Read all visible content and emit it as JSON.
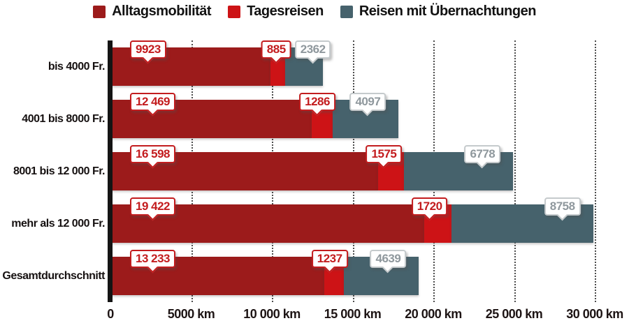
{
  "legend": {
    "items": [
      {
        "label": "Alltagsmobilität",
        "color": "#9c1b1b"
      },
      {
        "label": "Tagesreisen",
        "color": "#cd1316"
      },
      {
        "label": "Reisen mit Übernachtungen",
        "color": "#46626c"
      }
    ]
  },
  "chart_data": {
    "type": "bar",
    "orientation": "horizontal",
    "stacked": true,
    "unit": "km",
    "title": "",
    "categories": [
      "bis 4000 Fr.",
      "4001 bis 8000 Fr.",
      "8001 bis 12 000 Fr.",
      "mehr als 12 000 Fr.",
      "Gesamtdurchschnitt"
    ],
    "series": [
      {
        "name": "Alltagsmobilität",
        "color": "#9c1b1b",
        "bubble_style": "red",
        "values": [
          9923,
          12469,
          16598,
          19422,
          13233
        ],
        "value_labels": [
          "9923",
          "12 469",
          "16 598",
          "19 422",
          "13 233"
        ]
      },
      {
        "name": "Tagesreisen",
        "color": "#cd1316",
        "bubble_style": "red",
        "values": [
          885,
          1286,
          1575,
          1720,
          1237
        ],
        "value_labels": [
          "885",
          "1286",
          "1575",
          "1720",
          "1237"
        ]
      },
      {
        "name": "Reisen mit Übernachtungen",
        "color": "#46626c",
        "bubble_style": "gray",
        "values": [
          2362,
          4097,
          6778,
          8758,
          4639
        ],
        "value_labels": [
          "2362",
          "4097",
          "6778",
          "8758",
          "4639"
        ]
      }
    ],
    "x_axis": {
      "min": 0,
      "max": 30000,
      "ticks": [
        {
          "value": 0,
          "label": "0"
        },
        {
          "value": 5000,
          "label": "5000 km"
        },
        {
          "value": 10000,
          "label": "10 000 km"
        },
        {
          "value": 15000,
          "label": "15 000 km"
        },
        {
          "value": 20000,
          "label": "20 000 km"
        },
        {
          "value": 25000,
          "label": "25 000 km"
        },
        {
          "value": 30000,
          "label": "30 000 km"
        }
      ]
    },
    "grid": "vertical-dotted",
    "legend_position": "top"
  },
  "colors": {
    "background": "#ffffff",
    "axis_line": "#141414",
    "gridline": "#4c4c4c",
    "bubble_red": "#c31c1e",
    "bubble_gray_text": "#8f989d",
    "bubble_gray_border": "#c5cacc"
  }
}
